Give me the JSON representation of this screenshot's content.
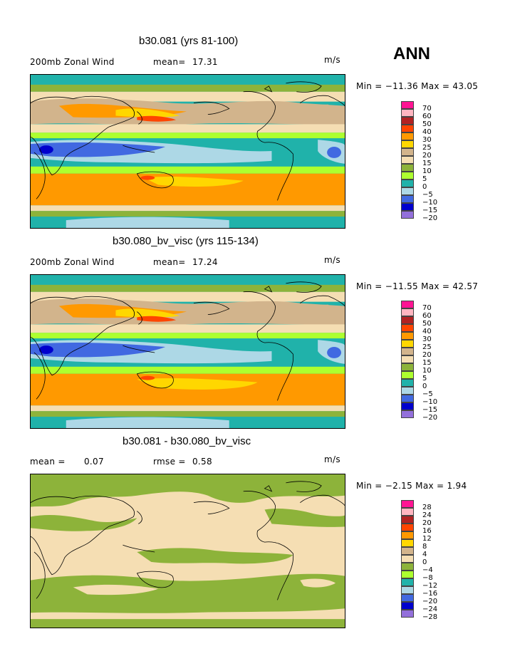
{
  "season": "ANN",
  "colors": {
    "magenta": "#ff1493",
    "pink": "#ffb6c1",
    "darkred": "#b22222",
    "red": "#ff4500",
    "orange": "#ff9900",
    "yellow": "#ffd700",
    "tan": "#d2b48c",
    "wheat": "#f5deb3",
    "ltgreen": "#adff2f",
    "green": "#8db33a",
    "teal": "#20b2aa",
    "ltblue": "#add8e6",
    "blue": "#4169e1",
    "navy": "#0000cd",
    "purple": "#9370db"
  },
  "panels": [
    {
      "title": "b30.081 (yrs 81-100)",
      "left_label": "200mb Zonal Wind",
      "mean_label": "mean=",
      "mean_value": "17.31",
      "units": "m/s",
      "minmax_text": "Min = −11.36 Max =   43.05",
      "legend_labels": [
        "70",
        "60",
        "50",
        "40",
        "30",
        "25",
        "20",
        "15",
        "10",
        "5",
        "0",
        "−5",
        "−10",
        "−15",
        "−20"
      ]
    },
    {
      "title": "b30.080_bv_visc (yrs 115-134)",
      "left_label": "200mb Zonal Wind",
      "mean_label": "mean=",
      "mean_value": "17.24",
      "units": "m/s",
      "minmax_text": "Min = −11.55 Max =   42.57",
      "legend_labels": [
        "70",
        "60",
        "50",
        "40",
        "30",
        "25",
        "20",
        "15",
        "10",
        "5",
        "0",
        "−5",
        "−10",
        "−15",
        "−20"
      ]
    },
    {
      "title": "b30.081 - b30.080_bv_visc",
      "left_label": "mean =",
      "left_value": "0.07",
      "rmse_label": "rmse =",
      "rmse_value": "0.58",
      "units": "m/s",
      "minmax_text": "Min = −2.15 Max =    1.94",
      "legend_labels": [
        "28",
        "24",
        "20",
        "16",
        "12",
        "8",
        "4",
        "0",
        "−4",
        "−8",
        "−12",
        "−16",
        "−20",
        "−24",
        "−28"
      ]
    }
  ]
}
